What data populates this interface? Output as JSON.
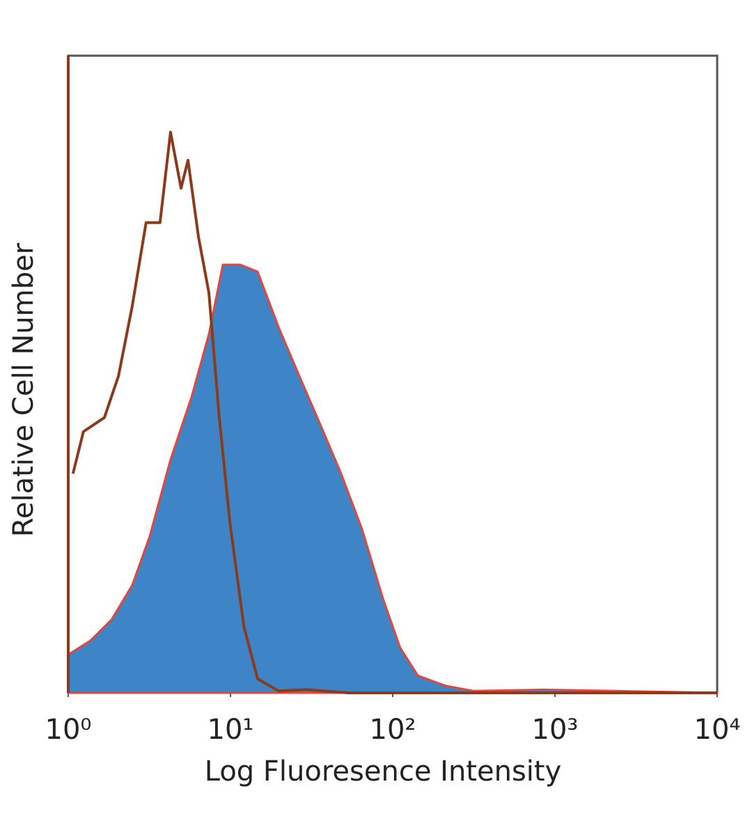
{
  "chart_data": {
    "type": "histogram-overlay",
    "xlabel": "Log Fluoresence Intensity",
    "ylabel": "Relative Cell Number",
    "xscale": "log",
    "xlim": [
      1,
      10000
    ],
    "ylim": [
      0,
      100
    ],
    "xticks": [
      {
        "value": 1,
        "label": "10⁰"
      },
      {
        "value": 10,
        "label": "10¹"
      },
      {
        "value": 100,
        "label": "10²"
      },
      {
        "value": 1000,
        "label": "10³"
      },
      {
        "value": 10000,
        "label": "10⁴"
      }
    ],
    "series": [
      {
        "style": "filled",
        "color": "#3d85c6",
        "edge_color": "#e3463c",
        "x": [
          1,
          1.37,
          1.85,
          2.48,
          3.18,
          4.27,
          5.75,
          7.36,
          8.97,
          11.5,
          14.7,
          19.8,
          26.6,
          35.8,
          48.1,
          64.7,
          87.1,
          111,
          143,
          212,
          315,
          845,
          10000
        ],
        "values": [
          6.0,
          8.2,
          11.5,
          16.9,
          24.6,
          36.6,
          46.4,
          56.3,
          67.2,
          67.2,
          66.1,
          57.4,
          49.7,
          42.1,
          34.4,
          25.7,
          14.8,
          7.1,
          2.7,
          1.1,
          0.3,
          0.5,
          0
        ]
      },
      {
        "style": "line",
        "color": "#8b3a1a",
        "x": [
          1.07,
          1.24,
          1.67,
          2.04,
          2.48,
          3.02,
          3.68,
          4.27,
          4.96,
          5.47,
          6.35,
          7.36,
          8.53,
          9.91,
          12.1,
          14.7,
          19.8,
          29.4,
          53.1,
          10000
        ],
        "values": [
          34.4,
          41.0,
          43.2,
          49.7,
          60.7,
          73.8,
          73.8,
          88.0,
          79.2,
          83.6,
          71.6,
          62.8,
          43.2,
          26.8,
          10.4,
          2.2,
          0.3,
          0.5,
          0,
          0
        ]
      }
    ]
  }
}
